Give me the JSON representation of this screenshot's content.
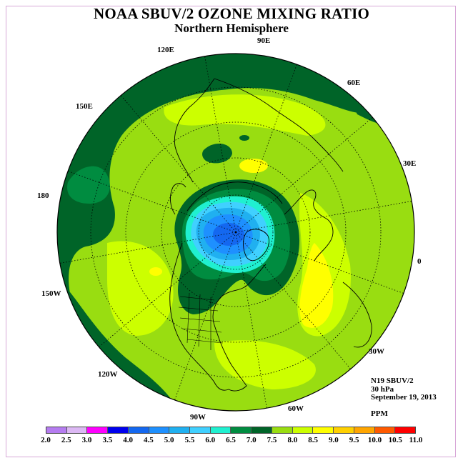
{
  "title": "NOAA SBUV/2 OZONE MIXING RATIO",
  "subtitle": "Northern Hemisphere",
  "info": {
    "satellite": "N19 SBUV/2",
    "level": "30 hPa",
    "date": "September 19, 2013",
    "units": "PPM"
  },
  "longitude_labels": [
    "90E",
    "60E",
    "30E",
    "0",
    "30W",
    "60W",
    "90W",
    "120W",
    "150W",
    "180",
    "150E",
    "120E"
  ],
  "colorbar": {
    "ticks": [
      "2.0",
      "2.5",
      "3.0",
      "3.5",
      "4.0",
      "4.5",
      "5.0",
      "5.5",
      "6.0",
      "6.5",
      "7.0",
      "7.5",
      "8.0",
      "8.5",
      "9.0",
      "9.5",
      "10.0",
      "10.5",
      "11.0"
    ],
    "colors": [
      "#b57cf0",
      "#dcb8f4",
      "#ff00ff",
      "#0000ee",
      "#1468f0",
      "#1e90ff",
      "#20b0f0",
      "#40d0ff",
      "#20f0d0",
      "#008c40",
      "#006428",
      "#99dd11",
      "#ccff00",
      "#ffff00",
      "#ffd000",
      "#ffa500",
      "#ff5a00",
      "#ff0000",
      "#8b5a3c"
    ]
  }
}
